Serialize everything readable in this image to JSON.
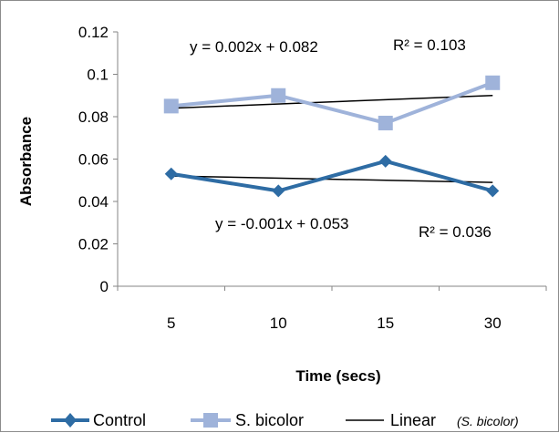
{
  "chart_data": {
    "type": "line",
    "categories": [
      "5",
      "10",
      "15",
      "30"
    ],
    "ylabel": "Absorbance",
    "xlabel": "Time (secs)",
    "ylim": [
      0,
      0.12
    ],
    "yticks": [
      "0",
      "0.02",
      "0.04",
      "0.06",
      "0.08",
      "0.1",
      "0.12"
    ],
    "grid": false,
    "legend_position": "bottom",
    "series": [
      {
        "name": "Control",
        "values": [
          0.053,
          0.045,
          0.059,
          0.045
        ],
        "color": "#2e6ca4",
        "marker": "diamond"
      },
      {
        "name": "S. bicolor",
        "values": [
          0.085,
          0.09,
          0.077,
          0.096
        ],
        "color": "#9fb3da",
        "marker": "square"
      }
    ],
    "trendlines": [
      {
        "of": "S. bicolor",
        "slope": 0.002,
        "intercept": 0.082,
        "equation": "y = 0.002x + 0.082",
        "r2": "R² = 0.103",
        "color": "#000000"
      },
      {
        "of": "Control",
        "slope": -0.001,
        "intercept": 0.053,
        "equation": "y = -0.001x + 0.053",
        "r2": "R² = 0.036",
        "color": "#000000"
      }
    ],
    "legend": {
      "control": "Control",
      "bicolor": "S. bicolor",
      "linear": "Linear",
      "linear_note": "(S. bicolor)"
    }
  }
}
